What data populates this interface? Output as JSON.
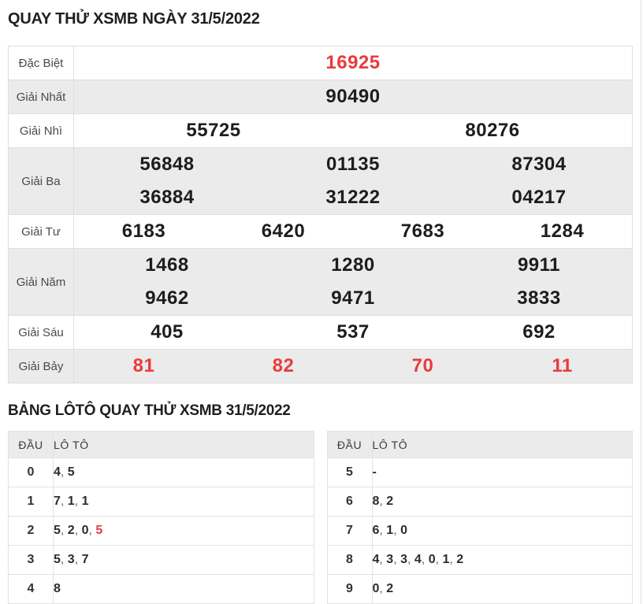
{
  "titles": {
    "main": "QUAY THỬ XSMB NGÀY 31/5/2022",
    "loto": "BẢNG LÔTÔ QUAY THỬ XSMB 31/5/2022"
  },
  "colors": {
    "accent_red": "#e83b3e",
    "row_shade": "#ebebeb",
    "border": "#dedede"
  },
  "prize_table": {
    "rows": [
      {
        "label": "Đặc Biệt",
        "cols": 1,
        "red": true,
        "values": [
          "16925"
        ]
      },
      {
        "label": "Giải Nhất",
        "cols": 1,
        "red": false,
        "values": [
          "90490"
        ]
      },
      {
        "label": "Giải Nhì",
        "cols": 2,
        "red": false,
        "values": [
          "55725",
          "80276"
        ]
      },
      {
        "label": "Giải Ba",
        "cols": 3,
        "red": false,
        "values": [
          "56848",
          "01135",
          "87304",
          "36884",
          "31222",
          "04217"
        ]
      },
      {
        "label": "Giải Tư",
        "cols": 4,
        "red": false,
        "values": [
          "6183",
          "6420",
          "7683",
          "1284"
        ]
      },
      {
        "label": "Giải Năm",
        "cols": 3,
        "red": false,
        "values": [
          "1468",
          "1280",
          "9911",
          "9462",
          "9471",
          "3833"
        ]
      },
      {
        "label": "Giải Sáu",
        "cols": 3,
        "red": false,
        "values": [
          "405",
          "537",
          "692"
        ]
      },
      {
        "label": "Giải Bảy",
        "cols": 4,
        "red": true,
        "values": [
          "81",
          "82",
          "70",
          "11"
        ]
      }
    ]
  },
  "loto_tables": [
    {
      "id": "left",
      "headers": [
        "ĐẦU",
        "LÔ TÔ"
      ],
      "rows": [
        {
          "dau": "0",
          "values": [
            "4",
            "5"
          ],
          "red_indices": []
        },
        {
          "dau": "1",
          "values": [
            "7",
            "1",
            "1"
          ],
          "red_indices": []
        },
        {
          "dau": "2",
          "values": [
            "5",
            "2",
            "0",
            "5"
          ],
          "red_indices": [
            3
          ]
        },
        {
          "dau": "3",
          "values": [
            "5",
            "3",
            "7"
          ],
          "red_indices": []
        },
        {
          "dau": "4",
          "values": [
            "8"
          ],
          "red_indices": []
        }
      ]
    },
    {
      "id": "right",
      "headers": [
        "ĐẦU",
        "LÔ TÔ"
      ],
      "rows": [
        {
          "dau": "5",
          "values": [
            "-"
          ],
          "red_indices": []
        },
        {
          "dau": "6",
          "values": [
            "8",
            "2"
          ],
          "red_indices": []
        },
        {
          "dau": "7",
          "values": [
            "6",
            "1",
            "0"
          ],
          "red_indices": []
        },
        {
          "dau": "8",
          "values": [
            "4",
            "3",
            "3",
            "4",
            "0",
            "1",
            "2"
          ],
          "red_indices": []
        },
        {
          "dau": "9",
          "values": [
            "0",
            "2"
          ],
          "red_indices": []
        }
      ]
    }
  ]
}
